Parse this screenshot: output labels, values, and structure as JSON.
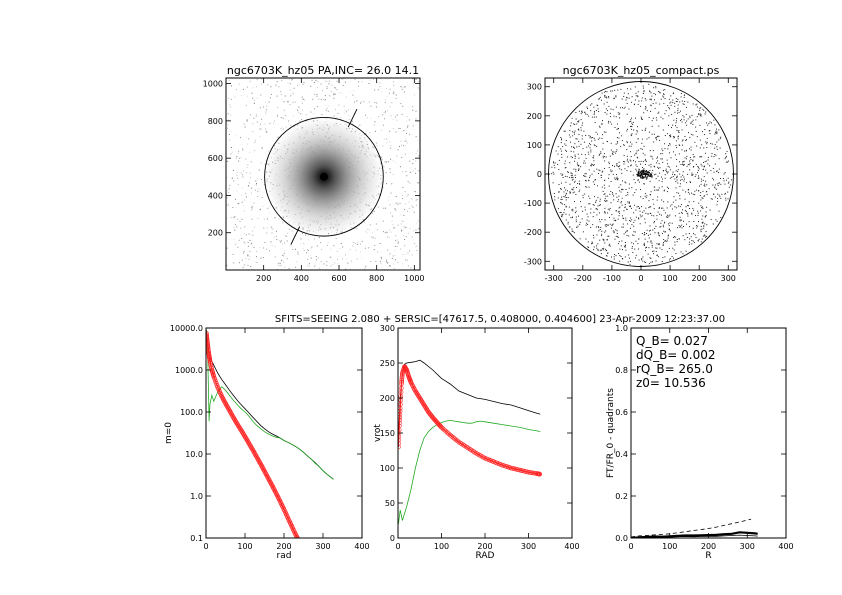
{
  "header": {
    "title": "SFITS=SEEING 2.080 + SERSIC=[47617.5, 0.408000, 0.404600]  23-Apr-2009 12:23:37.00"
  },
  "chart_data": [
    {
      "type": "heatmap",
      "title": "ngc6703K_hz05 PA,INC= 26.0 14.1",
      "xlim": [
        0,
        1030
      ],
      "ylim": [
        0,
        1030
      ],
      "x_ticks": [
        "200",
        "400",
        "600",
        "800",
        "1000"
      ],
      "y_ticks": [
        "200",
        "400",
        "600",
        "800",
        "1000"
      ],
      "x_tick_values": [
        200,
        400,
        600,
        800,
        1000
      ],
      "y_tick_values": [
        200,
        400,
        600,
        800,
        1000
      ],
      "center": [
        520,
        500
      ],
      "circle_radius": 315,
      "pa_deg": 26.0
    },
    {
      "type": "scatter",
      "title": "ngc6703K_hz05_compact.ps",
      "xlim": [
        -330,
        330
      ],
      "ylim": [
        -330,
        330
      ],
      "x_ticks": [
        "-300",
        "-200",
        "-100",
        "0",
        "100",
        "200",
        "300"
      ],
      "y_ticks": [
        "-300",
        "-200",
        "-100",
        "0",
        "100",
        "200",
        "300"
      ],
      "x_tick_values": [
        -300,
        -200,
        -100,
        0,
        100,
        200,
        300
      ],
      "y_tick_values": [
        -300,
        -200,
        -100,
        0,
        100,
        200,
        300
      ],
      "circle_radius": 318
    },
    {
      "type": "line",
      "xlabel": "rad",
      "ylabel": "m=0",
      "ylog": true,
      "xlim": [
        0,
        400
      ],
      "ylim": [
        0.1,
        10000
      ],
      "x_ticks": [
        "0",
        "100",
        "200",
        "300",
        "400"
      ],
      "x_tick_values": [
        0,
        100,
        200,
        300,
        400
      ],
      "y_ticks": [
        "0.1",
        "1.0",
        "10.0",
        "100.0",
        "1000.0",
        "10000.0"
      ],
      "y_tick_values": [
        0.1,
        1,
        10,
        100,
        1000,
        10000
      ],
      "series": [
        {
          "color": "#000000",
          "x": [
            1,
            5,
            10,
            20,
            30,
            40,
            50,
            60,
            70,
            80,
            90,
            100,
            110,
            120,
            130,
            140,
            150,
            160,
            170,
            180,
            190,
            200,
            210,
            220,
            230,
            240,
            250,
            260,
            270,
            280,
            290,
            300,
            310,
            320,
            327
          ],
          "y": [
            9000,
            4000,
            2000,
            1300,
            850,
            600,
            450,
            330,
            250,
            190,
            150,
            120,
            95,
            75,
            60,
            48,
            40,
            34,
            30,
            27,
            24,
            21,
            19,
            17,
            15,
            13,
            11,
            9,
            7.5,
            6.2,
            5,
            4,
            3.3,
            2.8,
            2.5
          ]
        },
        {
          "color": "#22aa22",
          "x": [
            1,
            5,
            8,
            10,
            15,
            20,
            30,
            40,
            50,
            60,
            70,
            80,
            90,
            100,
            110,
            120,
            130,
            140,
            150,
            160,
            170,
            180,
            190,
            200,
            210,
            220,
            230,
            240,
            250,
            260,
            270,
            280,
            290,
            300,
            310,
            320,
            327
          ],
          "y": [
            9000,
            1500,
            60,
            150,
            250,
            180,
            300,
            400,
            330,
            250,
            190,
            150,
            120,
            100,
            80,
            60,
            48,
            40,
            34,
            30,
            27,
            25,
            24,
            21,
            19,
            17,
            15,
            13,
            11,
            9,
            7.5,
            6,
            5,
            4,
            3.3,
            2.8,
            2.5
          ]
        },
        {
          "color": "#ff2222",
          "marker": "circle",
          "x": [
            1,
            3,
            5,
            8,
            10,
            15,
            20,
            30,
            40,
            50,
            60,
            70,
            80,
            90,
            100,
            110,
            120,
            130,
            140,
            150,
            160,
            170,
            180,
            190,
            200,
            210,
            220,
            230,
            240
          ],
          "y": [
            7500,
            5000,
            3500,
            2200,
            1700,
            1000,
            700,
            390,
            240,
            160,
            110,
            75,
            52,
            37,
            26,
            18,
            12.5,
            8.5,
            5.8,
            3.9,
            2.6,
            1.75,
            1.15,
            0.75,
            0.48,
            0.3,
            0.19,
            0.12,
            0.08
          ]
        }
      ]
    },
    {
      "type": "line",
      "xlabel": "RAD",
      "ylabel": "vrot",
      "xlim": [
        0,
        400
      ],
      "ylim": [
        0,
        300
      ],
      "x_ticks": [
        "0",
        "100",
        "200",
        "300",
        "400"
      ],
      "x_tick_values": [
        0,
        100,
        200,
        300,
        400
      ],
      "y_ticks": [
        "0",
        "50",
        "100",
        "150",
        "200",
        "250",
        "300"
      ],
      "y_tick_values": [
        0,
        50,
        100,
        150,
        200,
        250,
        300
      ],
      "series": [
        {
          "color": "#000000",
          "x": [
            1,
            5,
            10,
            15,
            20,
            30,
            40,
            50,
            60,
            80,
            100,
            120,
            140,
            160,
            180,
            200,
            220,
            240,
            260,
            280,
            300,
            320,
            327
          ],
          "y": [
            140,
            200,
            235,
            248,
            250,
            251,
            252,
            254,
            250,
            240,
            228,
            220,
            210,
            205,
            200,
            198,
            195,
            192,
            190,
            186,
            182,
            178,
            177
          ]
        },
        {
          "color": "#22aa22",
          "x": [
            1,
            5,
            10,
            20,
            30,
            40,
            50,
            60,
            70,
            80,
            90,
            100,
            110,
            120,
            130,
            140,
            150,
            160,
            170,
            180,
            190,
            200,
            220,
            240,
            260,
            280,
            300,
            320,
            327
          ],
          "y": [
            20,
            40,
            25,
            45,
            70,
            100,
            125,
            143,
            152,
            158,
            162,
            165,
            167,
            168,
            167,
            166,
            165,
            164,
            164,
            166,
            167,
            166,
            164,
            162,
            160,
            158,
            155,
            153,
            152
          ]
        },
        {
          "color": "#ff2222",
          "marker": "circle",
          "x": [
            1,
            3,
            5,
            8,
            10,
            15,
            20,
            25,
            30,
            40,
            50,
            60,
            70,
            80,
            90,
            100,
            120,
            140,
            160,
            180,
            200,
            220,
            240,
            260,
            280,
            300,
            320,
            327
          ],
          "y": [
            130,
            160,
            185,
            220,
            235,
            245,
            240,
            230,
            222,
            210,
            200,
            190,
            180,
            172,
            165,
            158,
            147,
            137,
            129,
            121,
            114,
            109,
            104,
            100,
            97,
            94,
            92,
            91
          ]
        }
      ]
    },
    {
      "type": "line",
      "xlabel": "R",
      "ylabel": "FT/FR_0 - quadrants",
      "xlim": [
        0,
        400
      ],
      "ylim": [
        0,
        1
      ],
      "x_ticks": [
        "0",
        "100",
        "200",
        "300",
        "400"
      ],
      "x_tick_values": [
        0,
        100,
        200,
        300,
        400
      ],
      "y_ticks": [
        "0.0",
        "0.2",
        "0.4",
        "0.6",
        "0.8",
        "1.0"
      ],
      "y_tick_values": [
        0,
        0.2,
        0.4,
        0.6,
        0.8,
        1.0
      ],
      "annotations": [
        "Q_B=  0.027",
        "dQ_B=  0.002",
        "rQ_B=  265.0",
        "z0= 10.536"
      ],
      "series": [
        {
          "color": "#000000",
          "style": "dashed",
          "x": [
            0,
            20,
            40,
            60,
            80,
            100,
            120,
            140,
            160,
            180,
            200,
            220,
            240,
            260,
            280,
            300,
            310
          ],
          "y": [
            0.005,
            0.01,
            0.012,
            0.015,
            0.017,
            0.02,
            0.025,
            0.03,
            0.035,
            0.04,
            0.045,
            0.052,
            0.06,
            0.068,
            0.076,
            0.085,
            0.09
          ]
        },
        {
          "color": "#000000",
          "style": "thick",
          "x": [
            0,
            20,
            40,
            60,
            80,
            100,
            120,
            140,
            160,
            180,
            200,
            220,
            240,
            260,
            280,
            300,
            320,
            327
          ],
          "y": [
            0.0,
            0.003,
            0.005,
            0.007,
            0.006,
            0.008,
            0.01,
            0.012,
            0.012,
            0.013,
            0.014,
            0.015,
            0.018,
            0.02,
            0.027,
            0.025,
            0.022,
            0.02
          ]
        },
        {
          "color": "#000000",
          "style": "thin",
          "x": [
            0,
            20,
            40,
            60,
            80,
            100,
            120,
            140,
            160,
            180,
            200,
            220,
            240,
            260,
            280,
            300,
            320,
            327
          ],
          "y": [
            0.0,
            0.002,
            0.003,
            0.004,
            0.004,
            0.005,
            0.006,
            0.007,
            0.006,
            0.007,
            0.008,
            0.008,
            0.01,
            0.012,
            0.014,
            0.012,
            0.01,
            0.009
          ]
        }
      ]
    }
  ]
}
